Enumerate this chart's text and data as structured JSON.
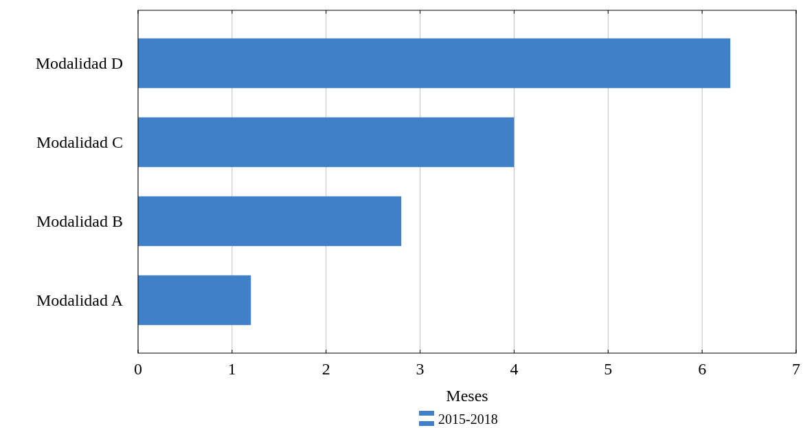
{
  "chart_data": {
    "type": "bar",
    "orientation": "horizontal",
    "categories": [
      "Modalidad D",
      "Modalidad C",
      "Modalidad B",
      "Modalidad A"
    ],
    "series": [
      {
        "name": "2015-2018",
        "color": "#4080c8",
        "values": [
          6.3,
          4.0,
          2.8,
          1.2
        ]
      }
    ],
    "xlabel": "Meses",
    "xlim": [
      0,
      7
    ],
    "xticks": [
      0,
      1,
      2,
      3,
      4,
      5,
      6,
      7
    ],
    "grid": "x",
    "legend": "bottom"
  }
}
